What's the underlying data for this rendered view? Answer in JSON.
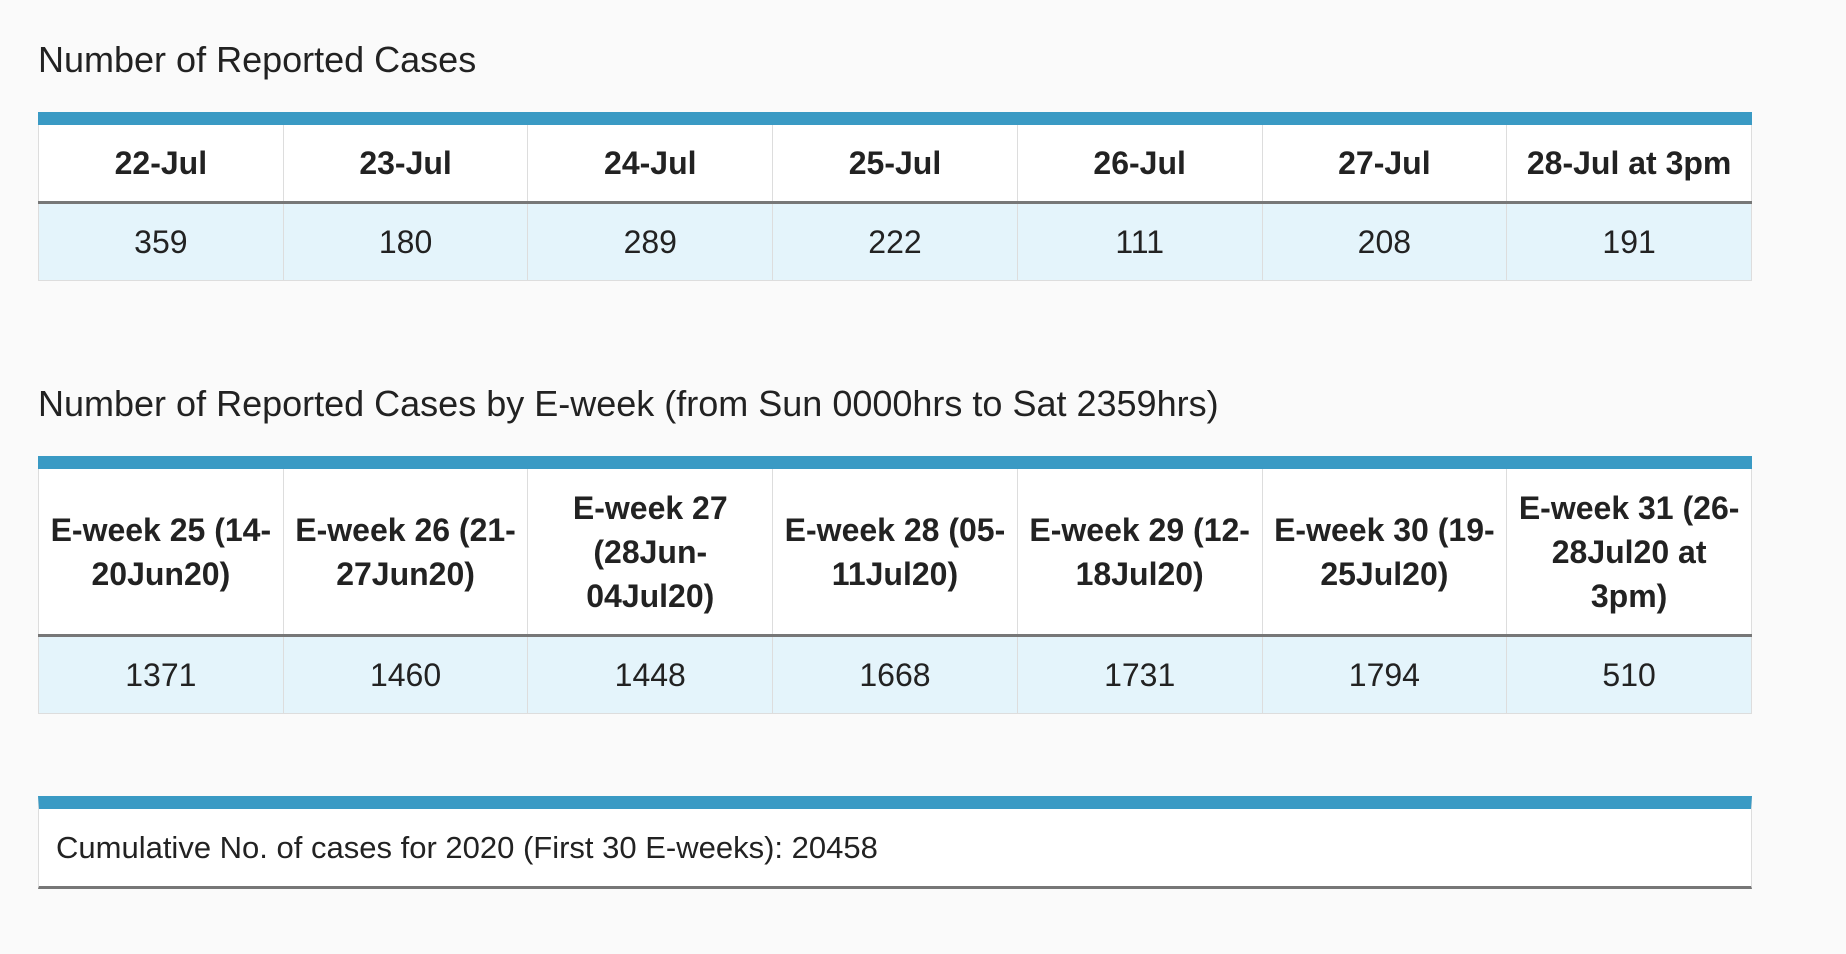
{
  "daily": {
    "title": "Number of Reported Cases",
    "headers": [
      "22-Jul",
      "23-Jul",
      "24-Jul",
      "25-Jul",
      "26-Jul",
      "27-Jul",
      "28-Jul at 3pm"
    ],
    "values": [
      "359",
      "180",
      "289",
      "222",
      "111",
      "208",
      "191"
    ]
  },
  "eweek": {
    "title": "Number of Reported Cases by E-week (from Sun 0000hrs to Sat 2359hrs)",
    "headers": [
      "E-week 25 (14-20Jun20)",
      "E-week 26 (21-27Jun20)",
      "E-week 27 (28Jun-04Jul20)",
      "E-week 28 (05-11Jul20)",
      "E-week 29 (12-18Jul20)",
      "E-week 30 (19-25Jul20)",
      "E-week 31 (26-28Jul20 at 3pm)"
    ],
    "values": [
      "1371",
      "1460",
      "1448",
      "1668",
      "1731",
      "1794",
      "510"
    ]
  },
  "cumulative": {
    "text": "Cumulative No. of cases for 2020 (First 30 E-weeks): 20458"
  },
  "colors": {
    "accent_bar": "#3a9ac4",
    "value_row": "#e4f4fb",
    "header_row": "#ffffff",
    "background": "#fafafa"
  }
}
